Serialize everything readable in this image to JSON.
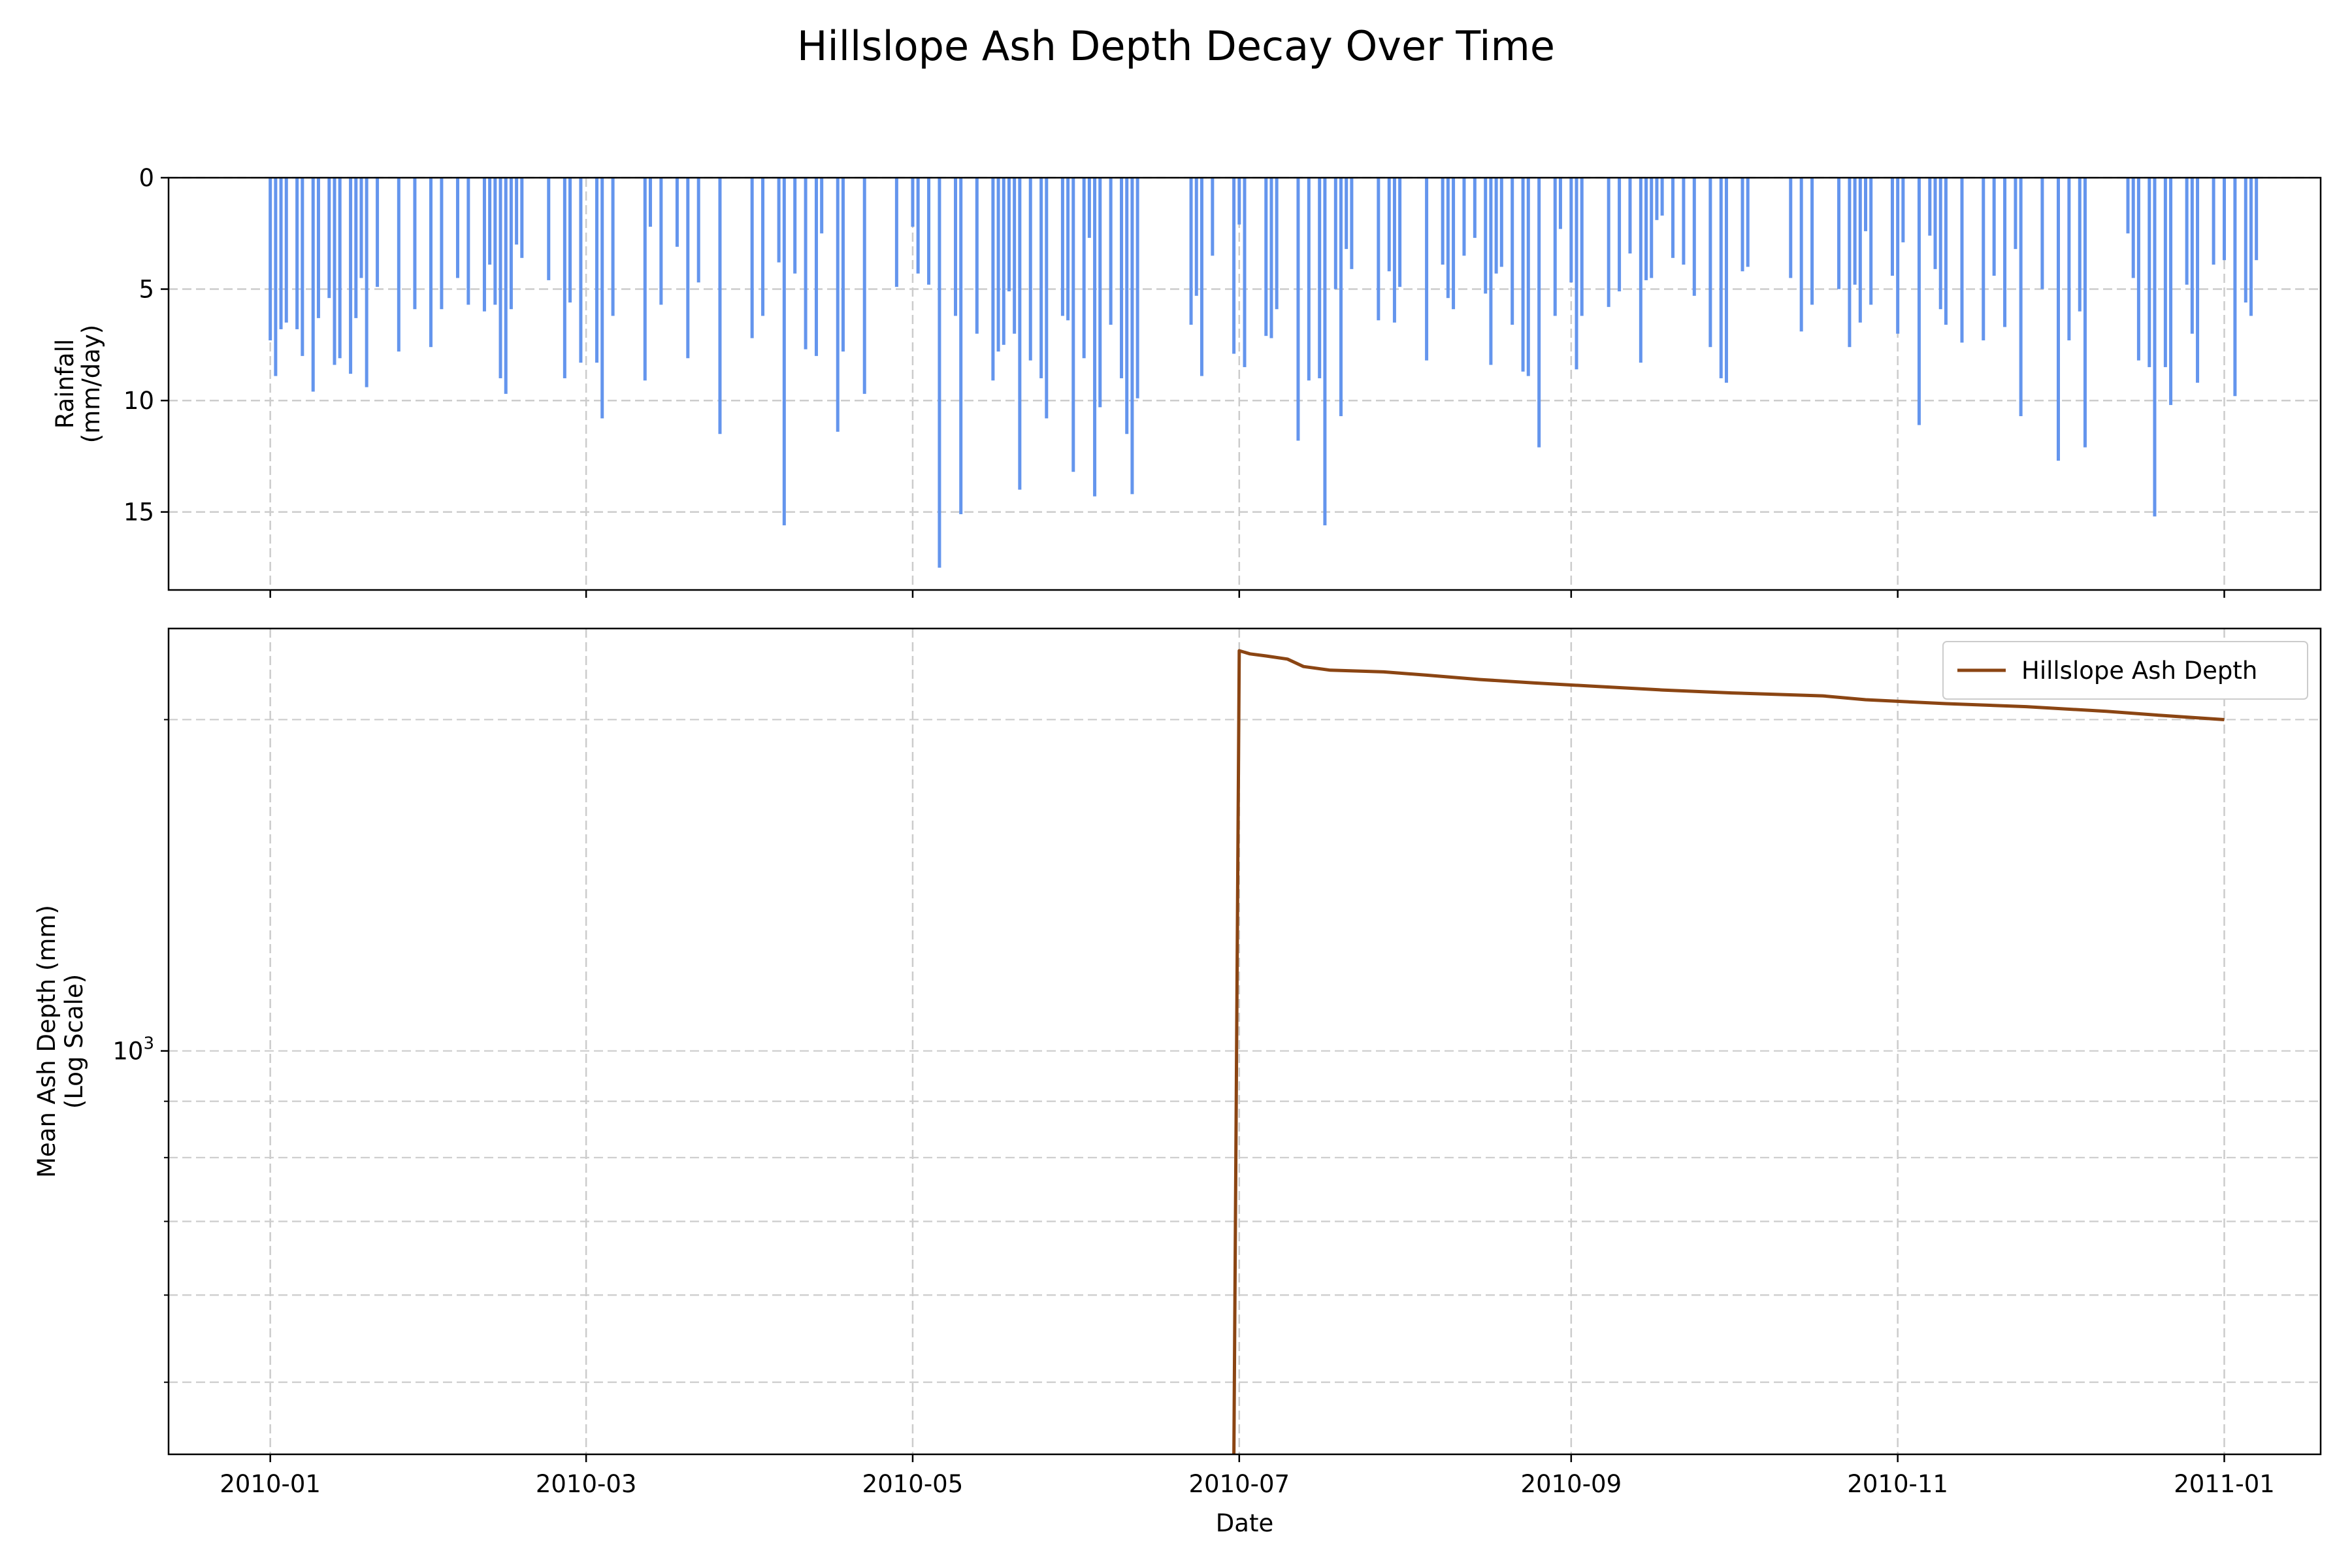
{
  "figure": {
    "title": "Hillslope Ash Depth Decay Over Time",
    "colors": {
      "rain": "#6495ed",
      "depth": "#8b4513",
      "grid": "#cccccc"
    }
  },
  "chart_data": [
    {
      "type": "bar",
      "panel": "rainfall",
      "ylabel": "Rainfall\n(mm/day)",
      "ylim": [
        0,
        18.5
      ],
      "y_inverted": true,
      "grid": true,
      "y_ticks": [
        0,
        5,
        10,
        15
      ],
      "x_tick_labels": [
        "2010-01",
        "2010-03",
        "2010-05",
        "2010-07",
        "2010-09",
        "2010-11",
        "2011-01"
      ],
      "x_ticks": [
        "2010-01-01",
        "2010-03-01",
        "2010-05-01",
        "2010-07-01",
        "2010-09-01",
        "2010-11-01",
        "2011-01-01"
      ],
      "xlim": [
        "2009-12-13",
        "2011-01-19"
      ],
      "series": [
        {
          "color": "#6495ed",
          "points": [
            [
              "2010-01-01",
              7.3
            ],
            [
              "2010-01-02",
              8.9
            ],
            [
              "2010-01-03",
              6.8
            ],
            [
              "2010-01-04",
              6.5
            ],
            [
              "2010-01-06",
              6.8
            ],
            [
              "2010-01-07",
              8.0
            ],
            [
              "2010-01-09",
              9.6
            ],
            [
              "2010-01-10",
              6.3
            ],
            [
              "2010-01-12",
              5.4
            ],
            [
              "2010-01-13",
              8.4
            ],
            [
              "2010-01-14",
              8.1
            ],
            [
              "2010-01-16",
              8.8
            ],
            [
              "2010-01-17",
              6.3
            ],
            [
              "2010-01-18",
              4.5
            ],
            [
              "2010-01-19",
              9.4
            ],
            [
              "2010-01-21",
              4.9
            ],
            [
              "2010-01-25",
              7.8
            ],
            [
              "2010-01-28",
              5.9
            ],
            [
              "2010-01-31",
              7.6
            ],
            [
              "2010-02-02",
              5.9
            ],
            [
              "2010-02-05",
              4.5
            ],
            [
              "2010-02-07",
              5.7
            ],
            [
              "2010-02-10",
              6.0
            ],
            [
              "2010-02-11",
              3.9
            ],
            [
              "2010-02-12",
              5.7
            ],
            [
              "2010-02-13",
              9.0
            ],
            [
              "2010-02-14",
              9.7
            ],
            [
              "2010-02-15",
              5.9
            ],
            [
              "2010-02-16",
              3.0
            ],
            [
              "2010-02-17",
              3.6
            ],
            [
              "2010-02-22",
              4.6
            ],
            [
              "2010-02-25",
              9.0
            ],
            [
              "2010-02-26",
              5.6
            ],
            [
              "2010-02-28",
              8.3
            ],
            [
              "2010-03-03",
              8.3
            ],
            [
              "2010-03-04",
              10.8
            ],
            [
              "2010-03-06",
              6.2
            ],
            [
              "2010-03-12",
              9.1
            ],
            [
              "2010-03-13",
              2.2
            ],
            [
              "2010-03-15",
              5.7
            ],
            [
              "2010-03-18",
              3.1
            ],
            [
              "2010-03-20",
              8.1
            ],
            [
              "2010-03-22",
              4.7
            ],
            [
              "2010-03-26",
              11.5
            ],
            [
              "2010-04-01",
              7.2
            ],
            [
              "2010-04-03",
              6.2
            ],
            [
              "2010-04-06",
              3.8
            ],
            [
              "2010-04-07",
              15.6
            ],
            [
              "2010-04-09",
              4.3
            ],
            [
              "2010-04-11",
              7.7
            ],
            [
              "2010-04-13",
              8.0
            ],
            [
              "2010-04-14",
              2.5
            ],
            [
              "2010-04-17",
              11.4
            ],
            [
              "2010-04-18",
              7.8
            ],
            [
              "2010-04-22",
              9.7
            ],
            [
              "2010-04-28",
              4.9
            ],
            [
              "2010-05-01",
              2.2
            ],
            [
              "2010-05-02",
              4.3
            ],
            [
              "2010-05-04",
              4.8
            ],
            [
              "2010-05-06",
              17.5
            ],
            [
              "2010-05-09",
              6.2
            ],
            [
              "2010-05-10",
              15.1
            ],
            [
              "2010-05-13",
              7.0
            ],
            [
              "2010-05-16",
              9.1
            ],
            [
              "2010-05-17",
              7.8
            ],
            [
              "2010-05-18",
              7.5
            ],
            [
              "2010-05-19",
              5.1
            ],
            [
              "2010-05-20",
              7.0
            ],
            [
              "2010-05-21",
              14.0
            ],
            [
              "2010-05-23",
              8.2
            ],
            [
              "2010-05-25",
              9.0
            ],
            [
              "2010-05-26",
              10.8
            ],
            [
              "2010-05-29",
              6.2
            ],
            [
              "2010-05-30",
              6.4
            ],
            [
              "2010-05-31",
              13.2
            ],
            [
              "2010-06-02",
              8.1
            ],
            [
              "2010-06-03",
              2.7
            ],
            [
              "2010-06-04",
              14.3
            ],
            [
              "2010-06-05",
              10.3
            ],
            [
              "2010-06-07",
              6.6
            ],
            [
              "2010-06-09",
              9.0
            ],
            [
              "2010-06-10",
              11.5
            ],
            [
              "2010-06-11",
              14.2
            ],
            [
              "2010-06-12",
              9.9
            ],
            [
              "2010-06-22",
              6.6
            ],
            [
              "2010-06-23",
              5.3
            ],
            [
              "2010-06-24",
              8.9
            ],
            [
              "2010-06-26",
              3.5
            ],
            [
              "2010-06-30",
              7.9
            ],
            [
              "2010-07-01",
              2.1
            ],
            [
              "2010-07-02",
              8.5
            ],
            [
              "2010-07-06",
              7.1
            ],
            [
              "2010-07-07",
              7.2
            ],
            [
              "2010-07-08",
              5.9
            ],
            [
              "2010-07-12",
              11.8
            ],
            [
              "2010-07-14",
              9.1
            ],
            [
              "2010-07-16",
              9.0
            ],
            [
              "2010-07-17",
              15.6
            ],
            [
              "2010-07-19",
              5.0
            ],
            [
              "2010-07-20",
              10.7
            ],
            [
              "2010-07-21",
              3.2
            ],
            [
              "2010-07-22",
              4.1
            ],
            [
              "2010-07-27",
              6.4
            ],
            [
              "2010-07-29",
              4.2
            ],
            [
              "2010-07-30",
              6.5
            ],
            [
              "2010-07-31",
              4.9
            ],
            [
              "2010-08-05",
              8.2
            ],
            [
              "2010-08-08",
              3.9
            ],
            [
              "2010-08-09",
              5.4
            ],
            [
              "2010-08-10",
              5.9
            ],
            [
              "2010-08-12",
              3.5
            ],
            [
              "2010-08-14",
              2.7
            ],
            [
              "2010-08-16",
              5.2
            ],
            [
              "2010-08-17",
              8.4
            ],
            [
              "2010-08-18",
              4.3
            ],
            [
              "2010-08-19",
              4.0
            ],
            [
              "2010-08-21",
              6.6
            ],
            [
              "2010-08-23",
              8.7
            ],
            [
              "2010-08-24",
              8.9
            ],
            [
              "2010-08-26",
              12.1
            ],
            [
              "2010-08-29",
              6.2
            ],
            [
              "2010-08-30",
              2.3
            ],
            [
              "2010-09-01",
              4.7
            ],
            [
              "2010-09-02",
              8.6
            ],
            [
              "2010-09-03",
              6.2
            ],
            [
              "2010-09-08",
              5.8
            ],
            [
              "2010-09-10",
              5.1
            ],
            [
              "2010-09-12",
              3.4
            ],
            [
              "2010-09-14",
              8.3
            ],
            [
              "2010-09-15",
              4.6
            ],
            [
              "2010-09-16",
              4.5
            ],
            [
              "2010-09-17",
              1.9
            ],
            [
              "2010-09-18",
              1.7
            ],
            [
              "2010-09-20",
              3.6
            ],
            [
              "2010-09-22",
              3.9
            ],
            [
              "2010-09-24",
              5.3
            ],
            [
              "2010-09-27",
              7.6
            ],
            [
              "2010-09-29",
              9.0
            ],
            [
              "2010-09-30",
              9.2
            ],
            [
              "2010-10-03",
              4.2
            ],
            [
              "2010-10-04",
              4.0
            ],
            [
              "2010-10-12",
              4.5
            ],
            [
              "2010-10-14",
              6.9
            ],
            [
              "2010-10-16",
              5.7
            ],
            [
              "2010-10-21",
              5.0
            ],
            [
              "2010-10-23",
              7.6
            ],
            [
              "2010-10-24",
              4.8
            ],
            [
              "2010-10-25",
              6.5
            ],
            [
              "2010-10-26",
              2.4
            ],
            [
              "2010-10-27",
              5.7
            ],
            [
              "2010-10-31",
              4.4
            ],
            [
              "2010-11-01",
              7.0
            ],
            [
              "2010-11-02",
              2.9
            ],
            [
              "2010-11-05",
              11.1
            ],
            [
              "2010-11-07",
              2.6
            ],
            [
              "2010-11-08",
              4.1
            ],
            [
              "2010-11-09",
              5.9
            ],
            [
              "2010-11-10",
              6.6
            ],
            [
              "2010-11-13",
              7.4
            ],
            [
              "2010-11-17",
              7.3
            ],
            [
              "2010-11-19",
              4.4
            ],
            [
              "2010-11-21",
              6.7
            ],
            [
              "2010-11-23",
              3.2
            ],
            [
              "2010-11-24",
              10.7
            ],
            [
              "2010-11-28",
              5.0
            ],
            [
              "2010-12-01",
              12.7
            ],
            [
              "2010-12-03",
              7.3
            ],
            [
              "2010-12-05",
              6.0
            ],
            [
              "2010-12-06",
              12.1
            ],
            [
              "2010-12-14",
              2.5
            ],
            [
              "2010-12-15",
              4.5
            ],
            [
              "2010-12-16",
              8.2
            ],
            [
              "2010-12-18",
              8.5
            ],
            [
              "2010-12-19",
              15.2
            ],
            [
              "2010-12-21",
              8.5
            ],
            [
              "2010-12-22",
              10.2
            ],
            [
              "2010-12-25",
              4.8
            ],
            [
              "2010-12-26",
              7.0
            ],
            [
              "2010-12-27",
              9.2
            ],
            [
              "2010-12-30",
              3.9
            ],
            [
              "2011-01-01",
              3.7
            ],
            [
              "2011-01-03",
              9.8
            ],
            [
              "2011-01-05",
              5.6
            ],
            [
              "2011-01-06",
              6.2
            ],
            [
              "2011-01-07",
              3.7
            ]
          ]
        }
      ]
    },
    {
      "type": "line",
      "panel": "ash_depth",
      "xlabel": "Date",
      "ylabel": "Mean Ash Depth (mm)\n(Log Scale)",
      "y_scale": "log",
      "ylim": [
        430,
        2420
      ],
      "y_major_tick": {
        "value": 1000,
        "base": "10",
        "exponent": "3"
      },
      "y_minor_ticks": [
        500,
        600,
        700,
        800,
        900,
        2000
      ],
      "xlim": [
        "2009-12-13",
        "2011-01-19"
      ],
      "x_ticks": [
        "2010-01-01",
        "2010-03-01",
        "2010-05-01",
        "2010-07-01",
        "2010-09-01",
        "2010-11-01",
        "2011-01-01"
      ],
      "x_tick_labels": [
        "2010-01",
        "2010-03",
        "2010-05",
        "2010-07",
        "2010-09",
        "2010-11",
        "2011-01"
      ],
      "legend_position": "top-right",
      "grid": true,
      "series": [
        {
          "name": "Hillslope Ash Depth",
          "color": "#8b4513",
          "points": [
            [
              "2010-06-30",
              430
            ],
            [
              "2010-07-01",
              2310
            ],
            [
              "2010-07-03",
              2295
            ],
            [
              "2010-07-06",
              2285
            ],
            [
              "2010-07-10",
              2270
            ],
            [
              "2010-07-13",
              2235
            ],
            [
              "2010-07-18",
              2218
            ],
            [
              "2010-07-28",
              2210
            ],
            [
              "2010-08-05",
              2195
            ],
            [
              "2010-08-15",
              2175
            ],
            [
              "2010-08-25",
              2160
            ],
            [
              "2010-09-05",
              2145
            ],
            [
              "2010-09-18",
              2128
            ],
            [
              "2010-10-01",
              2115
            ],
            [
              "2010-10-18",
              2102
            ],
            [
              "2010-10-26",
              2085
            ],
            [
              "2010-11-10",
              2068
            ],
            [
              "2010-11-25",
              2055
            ],
            [
              "2010-12-10",
              2035
            ],
            [
              "2010-12-20",
              2018
            ],
            [
              "2011-01-01",
              2000
            ]
          ]
        }
      ]
    }
  ]
}
